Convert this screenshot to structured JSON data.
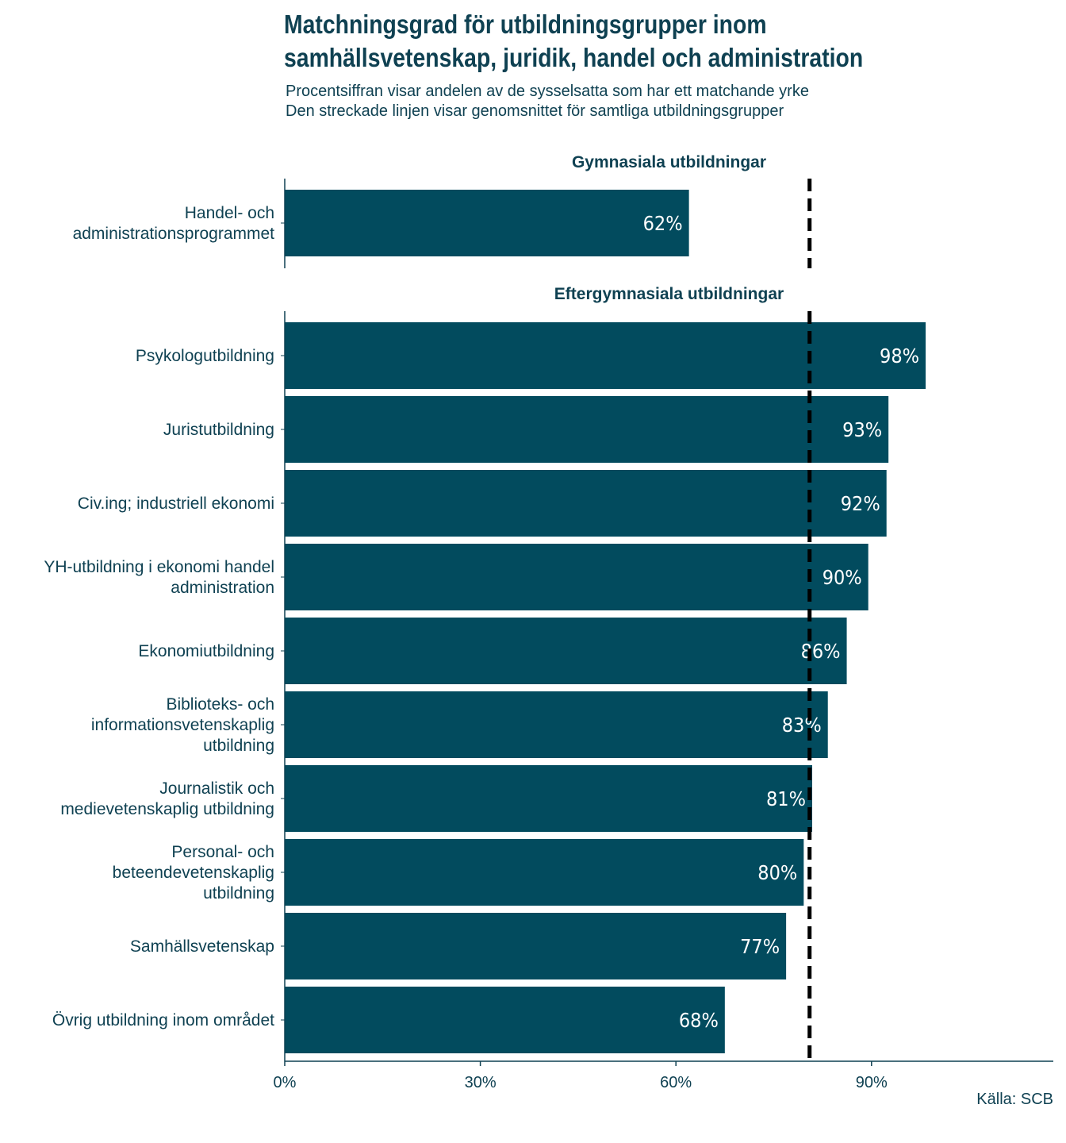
{
  "chart_data": {
    "type": "bar",
    "orientation": "horizontal",
    "title_line1": "Matchningsgrad för utbildningsgrupper inom",
    "title_line2": "samhällsvetenskap, juridik, handel och administration",
    "subtitle_line1": "Procentsiffran visar andelen av de sysselsatta som har ett matchande yrke",
    "subtitle_line2": "Den streckade linjen visar genomsnittet för samtliga utbildningsgrupper",
    "caption": "Källa: SCB",
    "xlim": [
      0,
      118
    ],
    "xticks": [
      0,
      30,
      60,
      90
    ],
    "xtick_labels": [
      "0%",
      "30%",
      "60%",
      "90%"
    ],
    "reference_line": 80.5,
    "reference_line_style": "dashed",
    "facets": [
      {
        "label": "Gymnasiala utbildningar",
        "bars": [
          {
            "label": [
              "Handel- och",
              "administrationsprogrammet"
            ],
            "value": 62,
            "value_label": "62%"
          }
        ]
      },
      {
        "label": "Eftergymnasiala utbildningar",
        "bars": [
          {
            "label": [
              "Psykologutbildning"
            ],
            "value": 98.3,
            "value_label": "98%"
          },
          {
            "label": [
              "Juristutbildning"
            ],
            "value": 92.6,
            "value_label": "93%"
          },
          {
            "label": [
              "Civ.ing; industriell ekonomi"
            ],
            "value": 92.3,
            "value_label": "92%"
          },
          {
            "label": [
              "YH-utbildning i ekonomi handel",
              "administration"
            ],
            "value": 89.5,
            "value_label": "90%"
          },
          {
            "label": [
              "Ekonomiutbildning"
            ],
            "value": 86.2,
            "value_label": "86%"
          },
          {
            "label": [
              "Biblioteks- och",
              "informationsvetenskaplig",
              "utbildning"
            ],
            "value": 83.3,
            "value_label": "83%"
          },
          {
            "label": [
              "Journalistik och",
              "medievetenskaplig utbildning"
            ],
            "value": 80.9,
            "value_label": "81%"
          },
          {
            "label": [
              "Personal- och",
              "beteendevetenskaplig",
              "utbildning"
            ],
            "value": 79.6,
            "value_label": "80%"
          },
          {
            "label": [
              "Samhällsvetenskap"
            ],
            "value": 76.9,
            "value_label": "77%"
          },
          {
            "label": [
              "Övrig utbildning inom området"
            ],
            "value": 67.5,
            "value_label": "68%"
          }
        ]
      }
    ],
    "colors": {
      "bar": "#024b5e",
      "text": "#0f4152",
      "reference": "#000000"
    }
  }
}
